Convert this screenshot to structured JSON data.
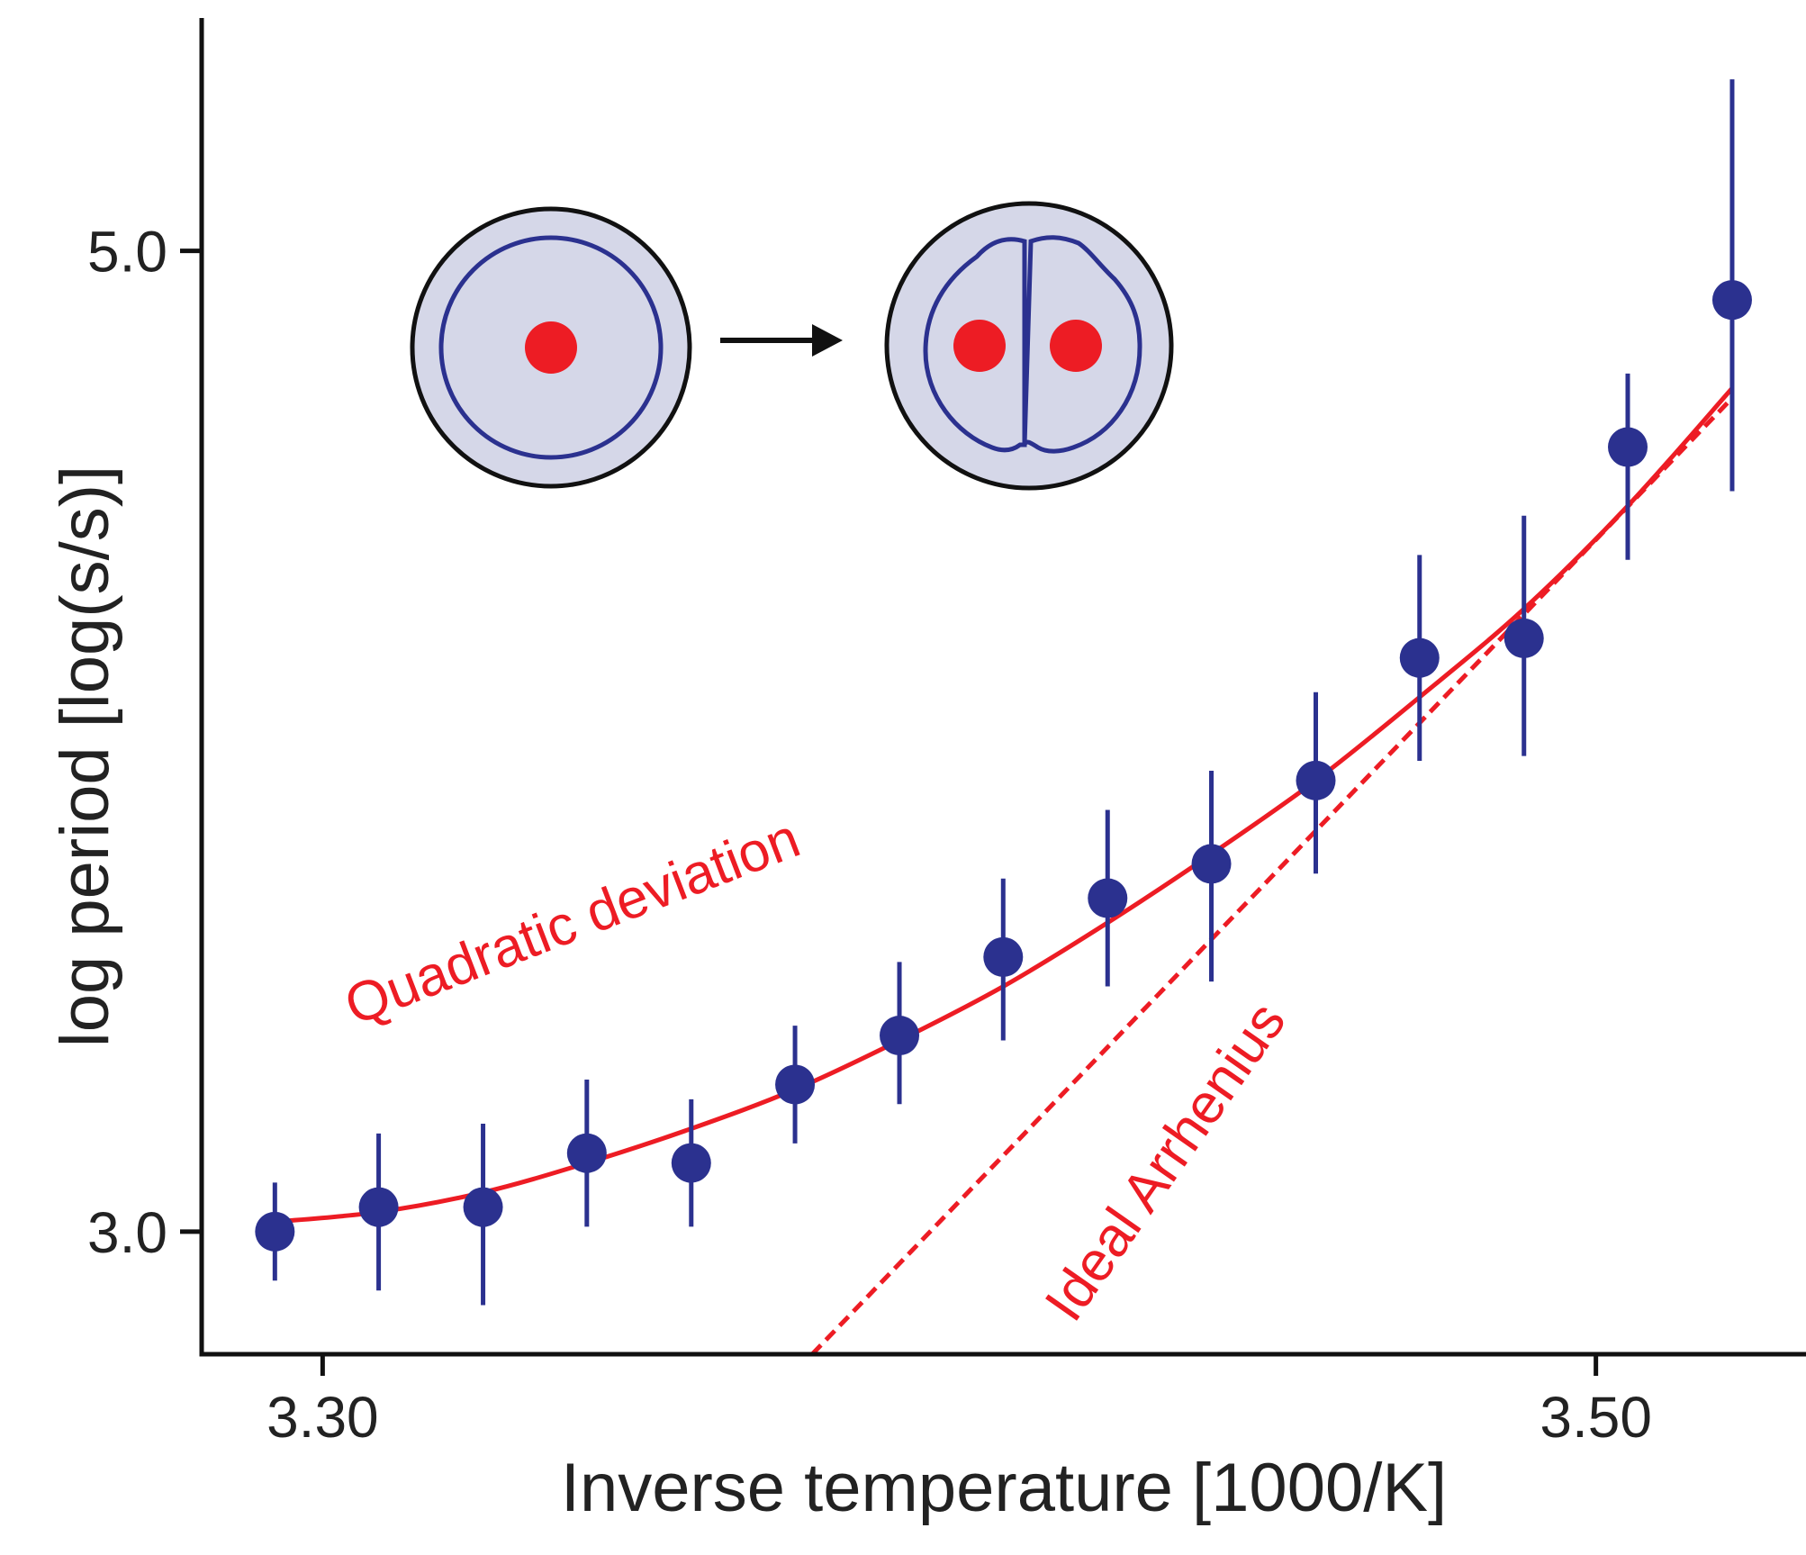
{
  "chart_data": {
    "type": "scatter",
    "title": "",
    "xlabel": "Inverse temperature [1000/K]",
    "ylabel": "log period [log(s/s)]",
    "xlim": [
      3.281,
      3.533
    ],
    "ylim": [
      2.75,
      5.475
    ],
    "xticks": [
      {
        "value": 3.3,
        "label": "3.30"
      },
      {
        "value": 3.5,
        "label": "3.50"
      }
    ],
    "yticks": [
      {
        "value": 3.0,
        "label": "3.0"
      },
      {
        "value": 5.0,
        "label": "5.0"
      }
    ],
    "grid": false,
    "legend": "none",
    "colors": {
      "points": "#2b318f",
      "fit": "#ed1c24",
      "axis": "#111111",
      "cell_fill": "#d5d7e8",
      "cell_outline": "#111111",
      "cell_inner": "#2b318f",
      "nucleus": "#ed1c24"
    },
    "series": [
      {
        "type": "scatter-errorbar",
        "x": [
          3.2925,
          3.3088,
          3.3252,
          3.3415,
          3.3579,
          3.3742,
          3.3906,
          3.4069,
          3.4233,
          3.4396,
          3.456,
          3.4723,
          3.4887,
          3.505,
          3.5214
        ],
        "y": [
          3.0,
          3.05,
          3.05,
          3.16,
          3.14,
          3.3,
          3.4,
          3.56,
          3.68,
          3.75,
          3.92,
          4.17,
          4.21,
          4.6,
          4.9
        ],
        "yerr_low": [
          2.9,
          2.88,
          2.85,
          3.01,
          3.01,
          3.18,
          3.26,
          3.39,
          3.5,
          3.51,
          3.73,
          3.96,
          3.97,
          4.37,
          4.51
        ],
        "yerr_high": [
          3.1,
          3.2,
          3.22,
          3.31,
          3.27,
          3.42,
          3.55,
          3.72,
          3.86,
          3.94,
          4.1,
          4.38,
          4.46,
          4.75,
          5.35
        ]
      },
      {
        "type": "line",
        "style": "solid",
        "label": "Quadratic deviation",
        "x": [
          3.2925,
          3.3088,
          3.3252,
          3.3415,
          3.3579,
          3.3742,
          3.3906,
          3.4069,
          3.4233,
          3.4396,
          3.456,
          3.4723,
          3.4887,
          3.505,
          3.5214
        ],
        "y": [
          3.02,
          3.04,
          3.08,
          3.14,
          3.21,
          3.29,
          3.39,
          3.5,
          3.63,
          3.77,
          3.92,
          4.09,
          4.27,
          4.48,
          4.72
        ]
      },
      {
        "type": "line",
        "style": "dashed",
        "label": "Ideal Arrhenius",
        "x": [
          3.3769,
          3.5214
        ],
        "y": [
          2.75,
          4.7
        ]
      }
    ],
    "annotations": [
      {
        "text": "Quadratic deviation",
        "x": 3.305,
        "y": 3.42,
        "rotation": -21
      },
      {
        "text": "Ideal Arrhenius",
        "x": 3.418,
        "y": 2.81,
        "rotation": -55
      }
    ],
    "inset": {
      "description_icons": [
        "cell-one-nucleus-icon",
        "arrow-right-icon",
        "cell-two-nuclei-icon"
      ]
    }
  }
}
